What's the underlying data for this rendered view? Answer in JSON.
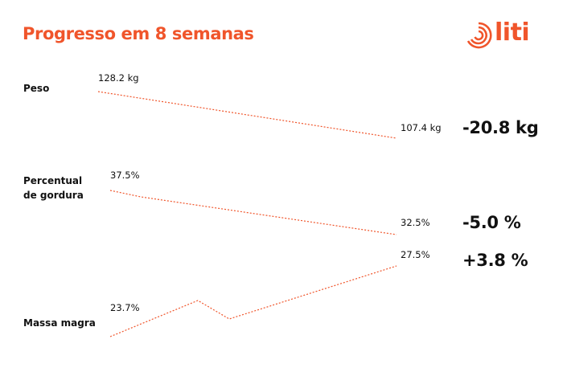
{
  "header": {
    "title": "Progresso em 8 semanas",
    "brand": "liti",
    "accent_color": "#f0552b",
    "logo_icon": "concentric-rings-icon"
  },
  "metrics": [
    {
      "label": "Peso",
      "start": "128.2 kg",
      "end": "107.4 kg",
      "delta": "-20.8 kg"
    },
    {
      "label_line1": "Percentual",
      "label_line2": "de gordura",
      "start": "37.5%",
      "end": "32.5%",
      "delta": "-5.0 %"
    },
    {
      "label": "Massa magra",
      "start": "23.7%",
      "end": "27.5%",
      "delta": "+3.8 %"
    }
  ]
}
